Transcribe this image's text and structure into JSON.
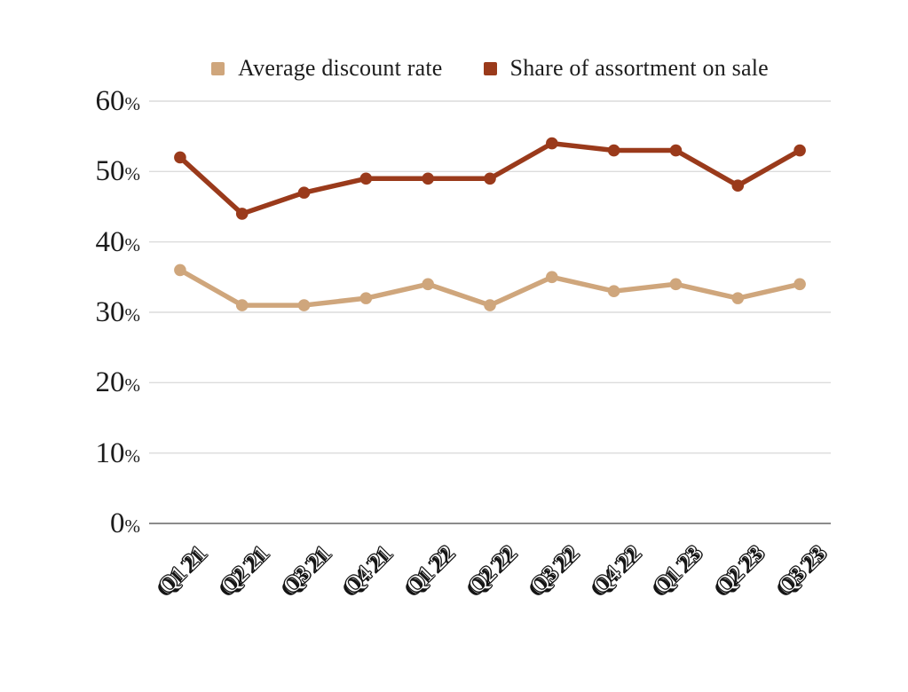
{
  "chart_data": {
    "type": "line",
    "categories": [
      "Q1 21",
      "Q2 21",
      "Q3 21",
      "Q4 21",
      "Q1 22",
      "Q2 22",
      "Q3 22",
      "Q4 22",
      "Q1 23",
      "Q2 23",
      "Q3 23"
    ],
    "series": [
      {
        "name": "Average discount rate",
        "color": "#cfa67c",
        "values": [
          36,
          31,
          31,
          32,
          34,
          31,
          35,
          33,
          34,
          32,
          34
        ]
      },
      {
        "name": "Share of assortment on sale",
        "color": "#9a3a1b",
        "values": [
          52,
          44,
          47,
          49,
          49,
          49,
          54,
          53,
          53,
          48,
          53
        ]
      }
    ],
    "title": "",
    "xlabel": "",
    "ylabel": "",
    "ylim": [
      0,
      60
    ],
    "yticks": [
      "0%",
      "10%",
      "20%",
      "30%",
      "40%",
      "50%",
      "60%"
    ],
    "grid": "horizontal",
    "legend_position": "top",
    "colors": {
      "gridline": "#dcdcdc",
      "axis_line": "#8c8c8c",
      "tick_text": "#1c1c1c",
      "background": "#ffffff"
    }
  },
  "legend": {
    "items": [
      {
        "label": "Average discount rate",
        "color": "#cfa67c"
      },
      {
        "label": "Share of assortment on sale",
        "color": "#9a3a1b"
      }
    ]
  }
}
